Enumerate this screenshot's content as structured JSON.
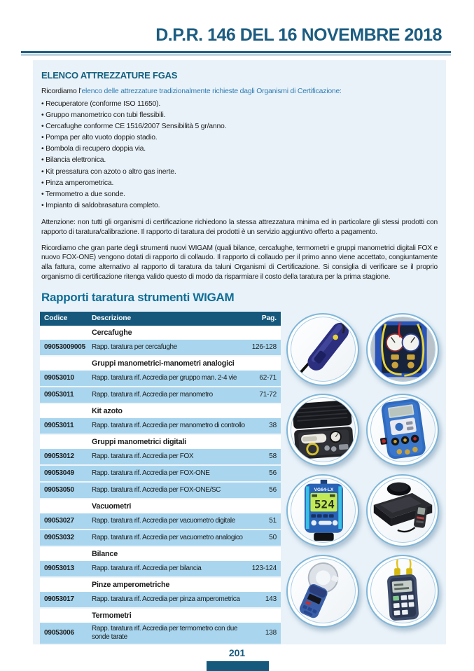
{
  "page": {
    "title": "D.P.R. 146 DEL 16 NOVEMBRE 2018",
    "footer_page_number": "201"
  },
  "panel": {
    "heading": "ELENCO ATTREZZATURE FGAS",
    "intro_prefix": "Ricordiamo l’",
    "intro_highlight": "elenco delle attrezzature tradizionalmente richieste dagli Organismi di Certificazione:",
    "bullets": [
      "Recuperatore (conforme ISO 11650).",
      "Gruppo manometrico con tubi flessibili.",
      "Cercafughe conforme CE 1516/2007 Sensibilità 5 gr/anno.",
      "Pompa per alto vuoto doppio stadio.",
      "Bombola di recupero doppia via.",
      "Bilancia elettronica.",
      "Kit pressatura con azoto o altro gas inerte.",
      "Pinza amperometrica.",
      "Termometro a due sonde.",
      "Impianto di saldobrasatura completo."
    ],
    "note_attention": "Attenzione: non tutti gli organismi di certificazione richiedono la stessa attrezzatura minima ed in particolare gli stessi prodotti con rapporto di taratura/calibrazione. Il rapporto di taratura dei prodotti è un servizio aggiuntivo offerto a pagamento.",
    "note_wigam": "Ricordiamo che gran parte degli strumenti nuovi WIGAM (quali bilance, cercafughe, termometri e gruppi manometrici digitali FOX e nuovo FOX-ONE) vengono dotati di rapporto di collaudo. Il rapporto di collaudo per il primo anno viene accettato, congiuntamente alla fattura, come alternativo al rapporto di taratura da taluni Organismi di Certificazione. Si consiglia di verificare se il proprio organismo di certificazione ritenga valido questo di modo da risparmiare il costo della taratura per la prima stagione.",
    "section_title": "Rapporti taratura strumenti WIGAM"
  },
  "table": {
    "columns": [
      "Codice",
      "Descrizione",
      "Pag."
    ],
    "rows": [
      {
        "kind": "section",
        "label": "Cercafughe"
      },
      {
        "kind": "item",
        "code": "09053009005",
        "desc": "Rapp. taratura per cercafughe",
        "pag": "126-128"
      },
      {
        "kind": "section",
        "label": "Gruppi manometrici-manometri analogici"
      },
      {
        "kind": "item",
        "code": "09053010",
        "desc": "Rapp. taratura rif. Accredia per gruppo man. 2-4 vie",
        "pag": "62-71"
      },
      {
        "kind": "item",
        "code": "09053011",
        "desc": "Rapp. taratura rif. Accredia per manometro",
        "pag": "71-72"
      },
      {
        "kind": "section",
        "label": "Kit azoto"
      },
      {
        "kind": "item",
        "code": "09053011",
        "desc": "Rapp. taratura rif. Accredia per manometro di controllo",
        "pag": "38"
      },
      {
        "kind": "section",
        "label": "Gruppi manometrici digitali"
      },
      {
        "kind": "item",
        "code": "09053012",
        "desc": "Rapp. taratura rif. Accredia per FOX",
        "pag": "58"
      },
      {
        "kind": "item",
        "code": "09053049",
        "desc": "Rapp. taratura rif. Accredia per FOX-ONE",
        "pag": "56"
      },
      {
        "kind": "item",
        "code": "09053050",
        "desc": "Rapp. taratura rif. Accredia per FOX-ONE/SC",
        "pag": "56"
      },
      {
        "kind": "section",
        "label": "Vacuometri"
      },
      {
        "kind": "item",
        "code": "09053027",
        "desc": "Rapp. taratura rif. Accredia per vacuometro digitale",
        "pag": "51"
      },
      {
        "kind": "item",
        "code": "09053032",
        "desc": "Rapp. taratura rif. Accredia per vacuometro analogico",
        "pag": "50"
      },
      {
        "kind": "section",
        "label": "Bilance"
      },
      {
        "kind": "item",
        "code": "09053013",
        "desc": "Rapp. taratura rif. Accredia per bilancia",
        "pag": "123-124"
      },
      {
        "kind": "section",
        "label": "Pinze amperometriche"
      },
      {
        "kind": "item",
        "code": "09053017",
        "desc": "Rapp. taratura rif. Accredia per pinza amperometrica",
        "pag": "143"
      },
      {
        "kind": "section",
        "label": "Termometri"
      },
      {
        "kind": "item",
        "code": "09053006",
        "desc": "Rapp. taratura rif. Accredia per termometro con due sonde tarate",
        "pag": "138"
      }
    ]
  },
  "gallery": {
    "products": [
      {
        "name": "leak-detector"
      },
      {
        "name": "manifold-gauge-set"
      },
      {
        "name": "nitrogen-kit-case"
      },
      {
        "name": "digital-manifold-fox"
      },
      {
        "name": "digital-vacuometer",
        "model": "VG64-LX",
        "display_value": "524"
      },
      {
        "name": "electronic-scale"
      },
      {
        "name": "clamp-meter"
      },
      {
        "name": "dual-probe-thermometer"
      }
    ]
  },
  "colors": {
    "accent_dark_blue": "#1b5c80",
    "table_header_bg": "#15587c",
    "row_highlight_blue": "#a9d6ee",
    "panel_bg": "#e9f2f9",
    "intro_link_blue": "#2d7cb3"
  }
}
